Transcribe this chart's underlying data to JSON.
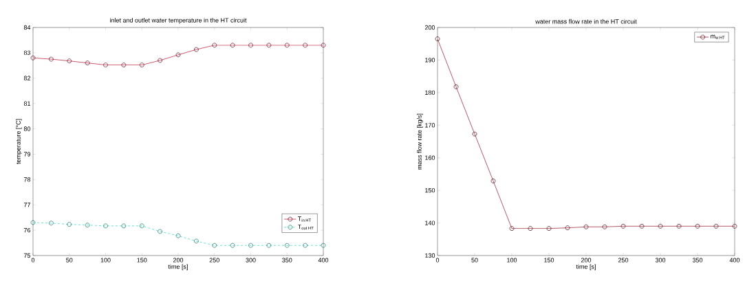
{
  "chart_data": [
    {
      "type": "line",
      "title": "inlet and outlet water temperature in the HT circuit",
      "xlabel": "time [s]",
      "ylabel": "temperature [°C]",
      "x": [
        0,
        25,
        50,
        75,
        100,
        125,
        150,
        175,
        200,
        225,
        250,
        275,
        300,
        325,
        350,
        375,
        400
      ],
      "xlim": [
        0,
        400
      ],
      "xticks": [
        0,
        50,
        100,
        150,
        200,
        250,
        300,
        350,
        400
      ],
      "ylim": [
        75,
        84
      ],
      "yticks": [
        75,
        76,
        77,
        78,
        79,
        80,
        81,
        82,
        83,
        84
      ],
      "legend": "bottom right",
      "marker": "circle",
      "series": [
        {
          "name": "\\mathrm{T}_{\\mathrm{in\\,HT}}",
          "color": "#c0304a",
          "line_style": "solid",
          "values": [
            82.8,
            82.75,
            82.68,
            82.6,
            82.52,
            82.52,
            82.52,
            82.7,
            82.92,
            83.13,
            83.3,
            83.3,
            83.3,
            83.3,
            83.3,
            83.3,
            83.3
          ]
        },
        {
          "name": "\\mathrm{T}_{\\mathrm{out\\,HT}}",
          "color": "#40d8c8",
          "line_style": "dashed",
          "values": [
            76.3,
            76.28,
            76.23,
            76.2,
            76.17,
            76.17,
            76.17,
            75.95,
            75.78,
            75.57,
            75.4,
            75.4,
            75.4,
            75.4,
            75.4,
            75.4,
            75.4
          ]
        }
      ]
    },
    {
      "type": "line",
      "title": "water mass flow rate in the HT circuit",
      "xlabel": "time [s]",
      "ylabel": "mass flow rate [kg/s]",
      "x": [
        0,
        25,
        50,
        75,
        100,
        125,
        150,
        175,
        200,
        225,
        250,
        275,
        300,
        325,
        350,
        375,
        400
      ],
      "xlim": [
        0,
        400
      ],
      "xticks": [
        0,
        50,
        100,
        150,
        200,
        250,
        300,
        350,
        400
      ],
      "ylim": [
        130,
        200
      ],
      "yticks": [
        130,
        140,
        150,
        160,
        170,
        180,
        190,
        200
      ],
      "legend": "top right",
      "marker": "circle",
      "series": [
        {
          "name": "\\mathrm{m}_{\\mathrm{w\\,HT}}",
          "color": "#a03040",
          "line_style": "solid",
          "values": [
            196.5,
            181.8,
            167.3,
            152.9,
            138.3,
            138.3,
            138.3,
            138.5,
            138.8,
            138.8,
            139,
            139,
            139,
            139,
            139,
            139,
            139
          ]
        }
      ]
    }
  ]
}
